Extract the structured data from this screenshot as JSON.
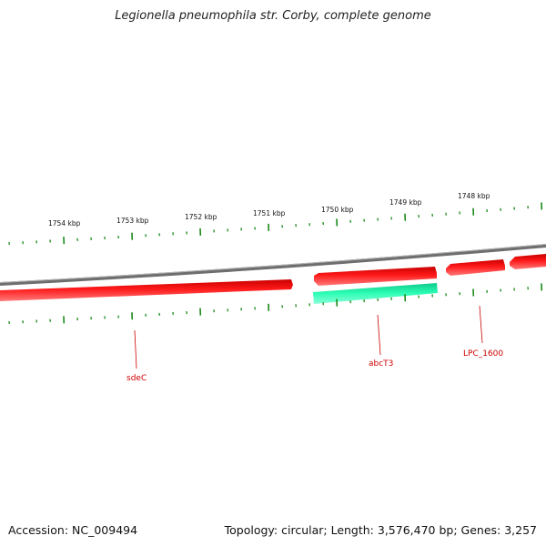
{
  "title": "Legionella pneumophila str. Corby, complete genome",
  "footer": {
    "accession": "Accession: NC_009494",
    "topology": "Topology: circular; Length: 3,576,470 bp; Genes: 3,257"
  },
  "colors": {
    "backbone": "#7a7a7a",
    "gene_forward": "#e60000",
    "gene_highlight": "#19e8a0",
    "tick": "#1a8a1a",
    "gene_label": "#cc0000"
  },
  "scale_labels": [
    "1754 kbp",
    "1753 kbp",
    "1752 kbp",
    "1751 kbp",
    "1750 kbp",
    "1749 kbp",
    "1748 kbp"
  ],
  "gene_labels": [
    "sdeC",
    "abcT3",
    "LPC_1600"
  ]
}
